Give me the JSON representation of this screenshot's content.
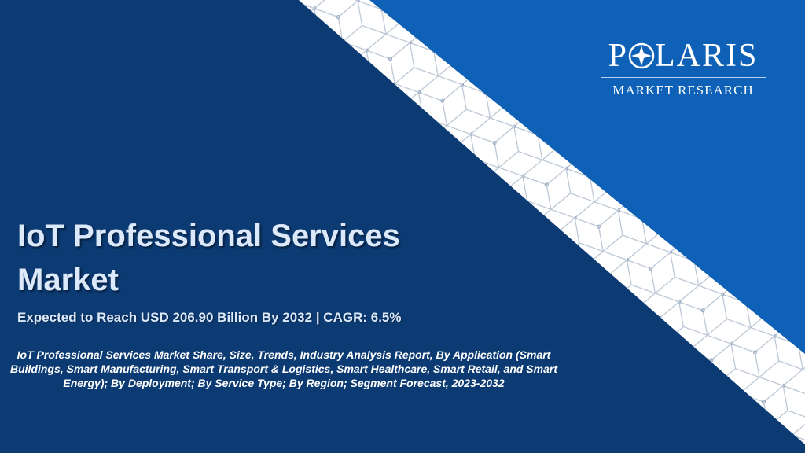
{
  "logo": {
    "name_start": "P",
    "name_end": "LARIS",
    "tagline": "MARKET RESEARCH"
  },
  "title": "IoT Professional Services Market",
  "subtitle": "Expected to Reach USD 206.90 Billion By 2032 | CAGR: 6.5%",
  "description": "IoT Professional Services Market Share, Size, Trends, Industry Analysis Report, By Application (Smart Buildings, Smart Manufacturing, Smart Transport & Logistics, Smart Healthcare, Smart Retail, and Smart Energy); By Deployment; By Service Type; By Region; Segment Forecast, 2023-2032"
}
